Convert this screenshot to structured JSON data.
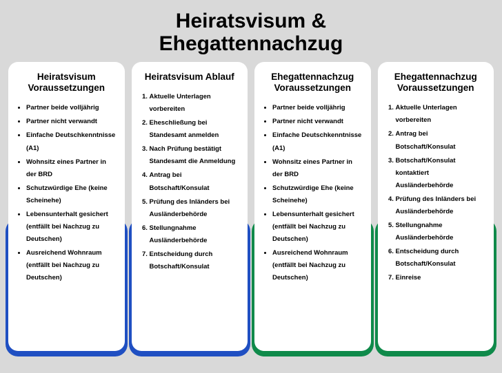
{
  "title_line1": "Heiratsvisum &",
  "title_line2": "Ehegattennachzug",
  "colors": {
    "blue": "#1f4fc2",
    "green": "#0f8a4a",
    "bg": "#d9d9d9",
    "card": "#ffffff"
  },
  "columns": [
    {
      "title": "Heiratsvisum Voraussetzungen",
      "listType": "ul",
      "shadowColor": "#1f4fc2",
      "items": [
        "Partner beide volljährig",
        "Partner nicht verwandt",
        "Einfache Deutschkenntnisse (A1)",
        "Wohnsitz eines Partner in der BRD",
        "Schutzwürdige Ehe (keine Scheinehe)",
        "Lebensunterhalt gesichert (entfällt bei Nachzug zu Deutschen)",
        "Ausreichend Wohnraum (entfällt bei Nachzug zu Deutschen)"
      ]
    },
    {
      "title": "Heiratsvisum Ablauf",
      "listType": "ol",
      "shadowColor": "#1f4fc2",
      "items": [
        "Aktuelle Unterlagen vorbereiten",
        "Eheschließung bei Standesamt anmelden",
        "Nach Prüfung bestätigt Standesamt die Anmeldung",
        "Antrag bei Botschaft/Konsulat",
        "Prüfung des Inländers bei Ausländerbehörde",
        "Stellungnahme Ausländerbehörde",
        "Entscheidung durch Botschaft/Konsulat"
      ]
    },
    {
      "title": "Ehegattennachzug Voraussetzungen",
      "listType": "ul",
      "shadowColor": "#0f8a4a",
      "items": [
        "Partner beide volljährig",
        "Partner nicht verwandt",
        "Einfache Deutschkenntnisse (A1)",
        "Wohnsitz eines Partner in der BRD",
        "Schutzwürdige Ehe (keine Scheinehe)",
        "Lebensunterhalt gesichert (entfällt bei Nachzug zu Deutschen)",
        "Ausreichend Wohnraum (entfällt bei Nachzug zu Deutschen)"
      ]
    },
    {
      "title": "Ehegattennachzug Voraussetzungen",
      "listType": "ol",
      "shadowColor": "#0f8a4a",
      "items": [
        "Aktuelle Unterlagen vorbereiten",
        "Antrag bei Botschaft/Konsulat",
        "Botschaft/Konsulat kontaktiert Ausländerbehörde",
        "Prüfung des Inländers bei Ausländerbehörde",
        "Stellungnahme Ausländerbehörde",
        "Entscheidung durch Botschaft/Konsulat",
        "Einreise"
      ]
    }
  ]
}
